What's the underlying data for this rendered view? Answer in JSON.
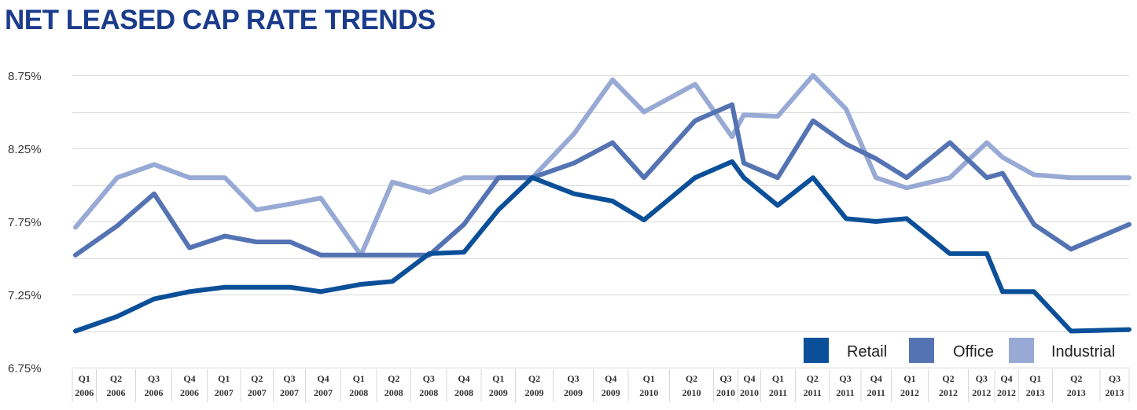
{
  "title": "NET LEASED CAP RATE TRENDS",
  "colors": {
    "retail": "#0b4f99",
    "office": "#5473b3",
    "industrial": "#97a9d4",
    "grid": "#d8d8d8",
    "title": "#1b3c8c"
  },
  "chart_data": {
    "type": "line",
    "title": "NET LEASED CAP RATE TRENDS",
    "xlabel": "",
    "ylabel": "",
    "ylim": [
      6.75,
      8.75
    ],
    "yticks": [
      "6.75%",
      "7.25%",
      "7.75%",
      "8.25%",
      "8.75%"
    ],
    "grid": true,
    "legend_position": "bottom-right",
    "categories": [
      [
        "Q1",
        "2006"
      ],
      [
        "Q2",
        "2006"
      ],
      [
        "Q3",
        "2006"
      ],
      [
        "Q4",
        "2006"
      ],
      [
        "Q1",
        "2007"
      ],
      [
        "Q2",
        "2007"
      ],
      [
        "Q3",
        "2007"
      ],
      [
        "Q4",
        "2007"
      ],
      [
        "Q1",
        "2008"
      ],
      [
        "Q2",
        "2008"
      ],
      [
        "Q3",
        "2008"
      ],
      [
        "Q4",
        "2008"
      ],
      [
        "Q1",
        "2009"
      ],
      [
        "Q2",
        "2009"
      ],
      [
        "Q3",
        "2009"
      ],
      [
        "Q4",
        "2009"
      ],
      [
        "Q1",
        "2010"
      ],
      [
        "Q2",
        "2010"
      ],
      [
        "Q3",
        "2010"
      ],
      [
        "Q4",
        "2010"
      ],
      [
        "Q1",
        "2011"
      ],
      [
        "Q2",
        "2011"
      ],
      [
        "Q3",
        "2011"
      ],
      [
        "Q4",
        "2011"
      ],
      [
        "Q1",
        "2012"
      ],
      [
        "Q2",
        "2012"
      ],
      [
        "Q3",
        "2012"
      ],
      [
        "Q4",
        "2012"
      ],
      [
        "Q1",
        "2013"
      ],
      [
        "Q2",
        "2013"
      ],
      [
        "Q3",
        "2013"
      ]
    ],
    "series": [
      {
        "name": "Retail",
        "color": "#0b4f99",
        "values": [
          7.0,
          7.1,
          7.22,
          7.27,
          7.3,
          7.3,
          7.3,
          7.27,
          7.32,
          7.34,
          7.53,
          7.54,
          7.83,
          8.05,
          7.94,
          7.89,
          7.76,
          8.05,
          8.16,
          8.05,
          7.86,
          8.05,
          7.77,
          7.75,
          7.77,
          7.53,
          7.53,
          7.27,
          7.27,
          7.0,
          7.01
        ]
      },
      {
        "name": "Office",
        "color": "#5473b3",
        "values": [
          7.52,
          7.72,
          7.94,
          7.57,
          7.65,
          7.61,
          7.61,
          7.52,
          7.52,
          7.52,
          7.52,
          7.73,
          8.05,
          8.05,
          8.15,
          8.29,
          8.05,
          8.44,
          8.55,
          8.15,
          8.05,
          8.44,
          8.28,
          8.18,
          8.05,
          8.29,
          8.05,
          8.08,
          7.73,
          7.56,
          7.73
        ]
      },
      {
        "name": "Industrial",
        "color": "#97a9d4",
        "values": [
          7.71,
          8.05,
          8.14,
          8.05,
          8.05,
          7.83,
          7.87,
          7.91,
          7.52,
          8.02,
          7.95,
          8.05,
          8.05,
          8.05,
          8.35,
          8.72,
          8.5,
          8.69,
          8.33,
          8.48,
          8.47,
          8.75,
          8.52,
          8.05,
          7.98,
          8.05,
          8.29,
          8.19,
          8.07,
          8.05,
          8.05
        ]
      }
    ]
  }
}
